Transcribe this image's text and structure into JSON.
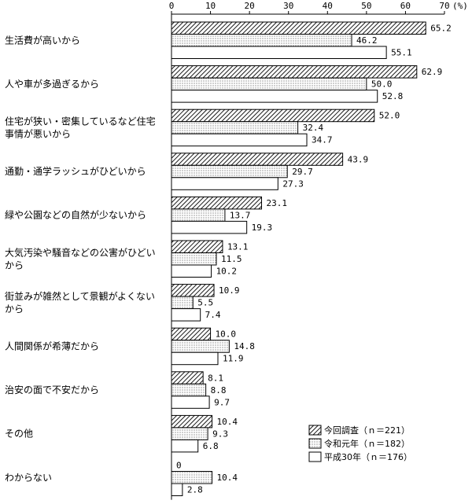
{
  "chart_data": {
    "type": "bar",
    "orientation": "horizontal",
    "unit": "(%)",
    "x_ticks": [
      "0",
      "10",
      "20",
      "30",
      "40",
      "50",
      "60",
      "70"
    ],
    "xlim": [
      0,
      70
    ],
    "categories": [
      [
        "生活費が高いから"
      ],
      [
        "人や車が多過ぎるから"
      ],
      [
        "住宅が狭い・密集しているなど住宅",
        "事情が悪いから"
      ],
      [
        "通勤・通学ラッシュがひどいから"
      ],
      [
        "緑や公園などの自然が少ないから"
      ],
      [
        "大気汚染や騒音などの公害がひどい",
        "から"
      ],
      [
        "街並みが雑然として景観がよくない",
        "から"
      ],
      [
        "人間関係が希薄だから"
      ],
      [
        "治安の面で不安だから"
      ],
      [
        "その他"
      ],
      [
        "わからない"
      ]
    ],
    "series": [
      {
        "name": "今回調査（ｎ＝221）",
        "fill": "hatch",
        "values": [
          65.2,
          62.9,
          52.0,
          43.9,
          23.1,
          13.1,
          10.9,
          10.0,
          8.1,
          10.4,
          0
        ],
        "labels": [
          "65.2",
          "62.9",
          "52.0",
          "43.9",
          "23.1",
          "13.1",
          "10.9",
          "10.0",
          "8.1",
          "10.4",
          "0"
        ]
      },
      {
        "name": "令和元年（ｎ＝182）",
        "fill": "dots",
        "values": [
          46.2,
          50.0,
          32.4,
          29.7,
          13.7,
          11.5,
          5.5,
          14.8,
          8.8,
          9.3,
          10.4
        ],
        "labels": [
          "46.2",
          "50.0",
          "32.4",
          "29.7",
          "13.7",
          "11.5",
          "5.5",
          "14.8",
          "8.8",
          "9.3",
          "10.4"
        ]
      },
      {
        "name": "平成30年（ｎ＝176）",
        "fill": "white",
        "values": [
          55.1,
          52.8,
          34.7,
          27.3,
          19.3,
          10.2,
          7.4,
          11.9,
          9.7,
          6.8,
          2.8
        ],
        "labels": [
          "55.1",
          "52.8",
          "34.7",
          "27.3",
          "19.3",
          "10.2",
          "7.4",
          "11.9",
          "9.7",
          "6.8",
          "2.8"
        ]
      }
    ],
    "legend": {
      "placement": "bottom-right",
      "entries": [
        "今回調査（ｎ＝221）",
        "令和元年（ｎ＝182）",
        "平成30年（ｎ＝176）"
      ]
    },
    "grid": false,
    "colors": {
      "stroke": "#000000",
      "background": "#ffffff"
    }
  }
}
